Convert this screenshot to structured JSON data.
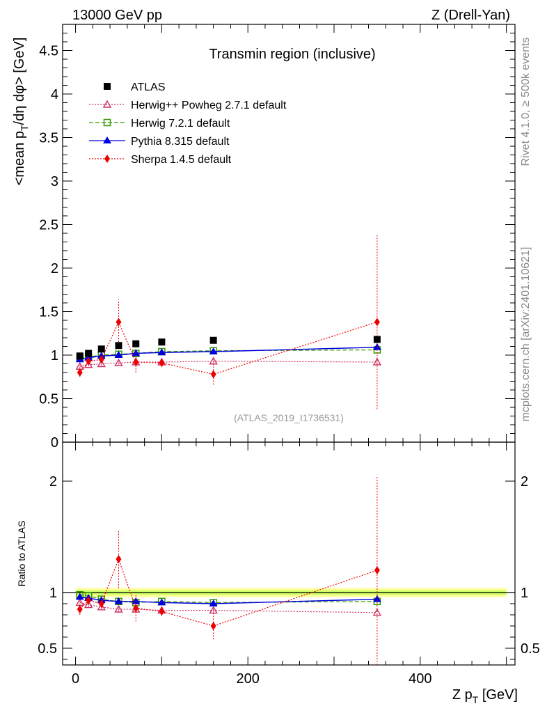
{
  "header": {
    "left": "13000 GeV pp",
    "right": "Z (Drell-Yan)"
  },
  "side_text": {
    "rivet": "Rivet 4.1.0, ≥ 500k events",
    "mcplots": "mcplots.cern.ch [arXiv:2401.10621]"
  },
  "colors": {
    "atlas": "#000000",
    "herwigpp": "#cc3366",
    "herwig7": "#339900",
    "pythia": "#0000dd",
    "sherpa": "#ee0000",
    "band_inner": "#ccff66",
    "band_outer": "#ffff99",
    "watermark": "#999999"
  },
  "chart_data": [
    {
      "type": "scatter",
      "title": "Transmin region (inclusive)",
      "analysis_label": "(ATLAS_2019_I1736531)",
      "ylabel_parts": [
        "<mean p",
        "T",
        "/dη dφ> [GeV]"
      ],
      "xlim": [
        -15,
        510
      ],
      "ylim": [
        0,
        4.8
      ],
      "y_ticks": [
        0,
        0.5,
        1,
        1.5,
        2,
        2.5,
        3,
        3.5,
        4,
        4.5
      ],
      "y_tick_labels": [
        "0",
        "0.5",
        "1",
        "1.5",
        "2",
        "2.5",
        "3",
        "3.5",
        "4",
        "4.5"
      ],
      "series": [
        {
          "name": "ATLAS",
          "key": "atlas",
          "marker": "square-filled",
          "line": "none",
          "x": [
            5,
            15,
            30,
            50,
            70,
            100,
            160,
            350
          ],
          "y": [
            0.99,
            1.02,
            1.07,
            1.11,
            1.13,
            1.15,
            1.17,
            1.18
          ],
          "err": [
            0.01,
            0.01,
            0.01,
            0.01,
            0.01,
            0.01,
            0.01,
            0.01
          ]
        },
        {
          "name": "Herwig++ Powheg 2.7.1 default",
          "key": "herwigpp",
          "marker": "triangle-open",
          "line": "dotted",
          "x": [
            5,
            15,
            30,
            50,
            70,
            100,
            160,
            350
          ],
          "y": [
            0.87,
            0.89,
            0.9,
            0.91,
            0.92,
            0.92,
            0.93,
            0.92
          ],
          "err": [
            0.02,
            0.02,
            0.02,
            0.02,
            0.02,
            0.02,
            0.02,
            0.02
          ]
        },
        {
          "name": "Herwig 7.2.1 default",
          "key": "herwig7",
          "marker": "square-open",
          "line": "dashed",
          "x": [
            5,
            15,
            30,
            50,
            70,
            100,
            160,
            350
          ],
          "y": [
            0.97,
            0.98,
            1.0,
            1.01,
            1.02,
            1.04,
            1.05,
            1.06
          ],
          "err": [
            0.01,
            0.01,
            0.01,
            0.01,
            0.01,
            0.01,
            0.01,
            0.01
          ]
        },
        {
          "name": "Pythia 8.315 default",
          "key": "pythia",
          "marker": "triangle-filled",
          "line": "solid",
          "x": [
            5,
            15,
            30,
            50,
            70,
            100,
            160,
            350
          ],
          "y": [
            0.95,
            0.97,
            0.99,
            1.0,
            1.02,
            1.03,
            1.04,
            1.09
          ],
          "err": [
            0.01,
            0.01,
            0.01,
            0.01,
            0.01,
            0.01,
            0.01,
            0.02
          ]
        },
        {
          "name": "Sherpa 1.4.5 default",
          "key": "sherpa",
          "marker": "diamond-filled",
          "line": "dotted",
          "x": [
            5,
            15,
            30,
            50,
            70,
            100,
            160,
            350
          ],
          "y": [
            0.8,
            0.93,
            0.95,
            1.38,
            0.92,
            0.91,
            0.78,
            1.38
          ],
          "err": [
            0.05,
            0.03,
            0.04,
            0.26,
            0.12,
            0.04,
            0.12,
            1.0
          ]
        }
      ]
    },
    {
      "type": "scatter",
      "ylabel": "Ratio to ATLAS",
      "xlabel_parts": [
        "Z p",
        "T",
        " [GeV]"
      ],
      "xlim": [
        -15,
        510
      ],
      "ylim": [
        0.35,
        2.35
      ],
      "x_ticks": [
        0,
        200,
        400
      ],
      "x_tick_labels": [
        "0",
        "200",
        "400"
      ],
      "y_ticks": [
        0.5,
        1,
        2
      ],
      "y_tick_labels": [
        "0.5",
        "1",
        "2"
      ],
      "band": {
        "inner": 0.02,
        "outer": 0.04
      },
      "series": [
        {
          "name": "Herwig++ Powheg 2.7.1 default",
          "key": "herwigpp",
          "marker": "triangle-open",
          "line": "dotted",
          "x": [
            5,
            15,
            30,
            50,
            70,
            100,
            160,
            350
          ],
          "y": [
            0.91,
            0.89,
            0.87,
            0.85,
            0.85,
            0.84,
            0.84,
            0.82
          ],
          "err": [
            0.02,
            0.02,
            0.02,
            0.02,
            0.02,
            0.02,
            0.02,
            0.02
          ]
        },
        {
          "name": "Herwig 7.2.1 default",
          "key": "herwig7",
          "marker": "square-open",
          "line": "dashed",
          "x": [
            5,
            15,
            30,
            50,
            70,
            100,
            160,
            350
          ],
          "y": [
            0.98,
            0.97,
            0.94,
            0.92,
            0.91,
            0.92,
            0.91,
            0.92
          ],
          "err": [
            0.01,
            0.01,
            0.01,
            0.01,
            0.01,
            0.01,
            0.01,
            0.01
          ]
        },
        {
          "name": "Pythia 8.315 default",
          "key": "pythia",
          "marker": "triangle-filled",
          "line": "solid",
          "x": [
            5,
            15,
            30,
            50,
            70,
            100,
            160,
            350
          ],
          "y": [
            0.96,
            0.95,
            0.93,
            0.92,
            0.92,
            0.91,
            0.9,
            0.94
          ],
          "err": [
            0.01,
            0.01,
            0.01,
            0.01,
            0.01,
            0.01,
            0.01,
            0.02
          ]
        },
        {
          "name": "Sherpa 1.4.5 default",
          "key": "sherpa",
          "marker": "diamond-filled",
          "line": "dotted",
          "x": [
            5,
            15,
            30,
            50,
            70,
            100,
            160,
            350
          ],
          "y": [
            0.85,
            0.93,
            0.9,
            1.3,
            0.86,
            0.83,
            0.7,
            1.2
          ],
          "err": [
            0.05,
            0.03,
            0.04,
            0.26,
            0.12,
            0.04,
            0.12,
            0.85
          ]
        }
      ]
    }
  ]
}
